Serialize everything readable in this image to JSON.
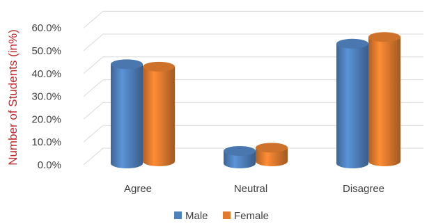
{
  "chart_data": {
    "type": "bar",
    "style": "3d-cylinder",
    "categories": [
      "Agree",
      "Neutral",
      "Disagree"
    ],
    "series": [
      {
        "name": "Male",
        "values": [
          43.5,
          5.5,
          52.5
        ],
        "color": "#4f81bd"
      },
      {
        "name": "Female",
        "values": [
          41.5,
          6.0,
          54.5
        ],
        "color": "#e07b2e"
      }
    ],
    "ylabel": "Number of Students (in%)",
    "ylabel_color": "#c0282d",
    "xlabel": "",
    "ylim": [
      0,
      60
    ],
    "yticks": [
      0,
      10,
      20,
      30,
      40,
      50,
      60
    ],
    "ytick_labels": [
      "0.0%",
      "10.0%",
      "20.0%",
      "30.0%",
      "40.0%",
      "50.0%",
      "60.0%"
    ],
    "grid": true,
    "legend_position": "bottom"
  }
}
